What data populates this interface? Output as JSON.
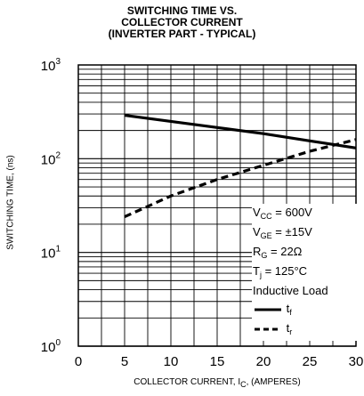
{
  "title_lines": [
    "SWITCHING TIME VS.",
    "COLLECTOR CURRENT",
    "(INVERTER PART - TYPICAL)"
  ],
  "axis": {
    "xlabel_prefix": "COLLECTOR CURRENT, I",
    "xlabel_sub": "C",
    "xlabel_suffix": ", (AMPERES)",
    "ylabel": "SWITCHING TIME, (ns)"
  },
  "legend": {
    "conditions": [
      {
        "pre": "V",
        "sub": "CC",
        "post": " = 600V"
      },
      {
        "pre": "V",
        "sub": "GE",
        "post": " = ±15V"
      },
      {
        "pre": "R",
        "sub": "G",
        "post": " = 22Ω"
      },
      {
        "pre": "T",
        "sub": "j",
        "post": " = 125°C"
      },
      {
        "pre": "Inductive Load",
        "sub": "",
        "post": ""
      }
    ]
  },
  "chart_data": {
    "type": "line",
    "title": "SWITCHING TIME VS. COLLECTOR CURRENT (INVERTER PART - TYPICAL)",
    "xlabel": "COLLECTOR CURRENT, IC, (AMPERES)",
    "ylabel": "SWITCHING TIME, (ns)",
    "xlim": [
      0,
      30
    ],
    "ylim": [
      1,
      1000
    ],
    "yscale": "log",
    "x_ticks": [
      "0",
      "5",
      "10",
      "15",
      "20",
      "25",
      "30"
    ],
    "y_ticks": [
      {
        "base": "10",
        "exp": "0"
      },
      {
        "base": "10",
        "exp": "1"
      },
      {
        "base": "10",
        "exp": "2"
      },
      {
        "base": "10",
        "exp": "3"
      }
    ],
    "grid": true,
    "series": [
      {
        "name": "tf",
        "label_main": "t",
        "label_sub": "f",
        "style": "solid",
        "x": [
          5,
          10,
          15,
          20,
          25,
          30
        ],
        "y": [
          290,
          250,
          215,
          185,
          155,
          130
        ]
      },
      {
        "name": "tr",
        "label_main": "t",
        "label_sub": "r",
        "style": "dashed",
        "x": [
          5,
          10,
          15,
          20,
          25,
          30
        ],
        "y": [
          24,
          40,
          60,
          85,
          120,
          160
        ]
      }
    ]
  }
}
